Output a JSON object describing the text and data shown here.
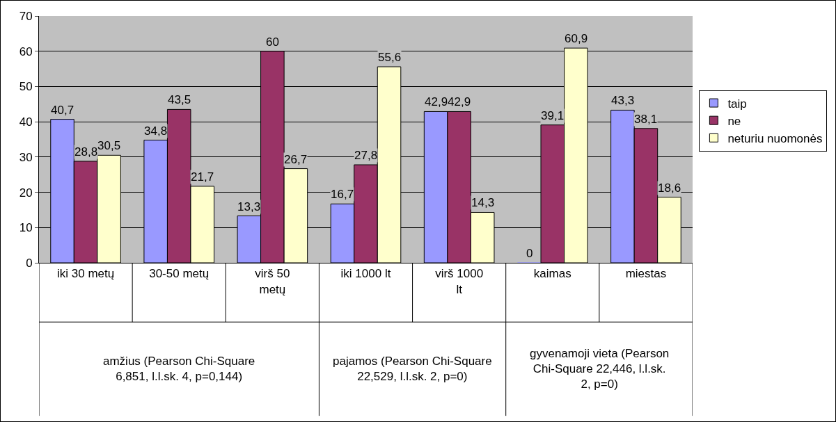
{
  "chart_data": {
    "type": "bar",
    "categories": [
      "iki 30 metų",
      "30-50 metų",
      "virš 50 metų",
      "iki 1000 lt",
      "virš 1000 lt",
      "kaimas",
      "miestas"
    ],
    "series": [
      {
        "name": "taip",
        "color": "#9999ff",
        "values": [
          40.7,
          34.8,
          13.3,
          16.7,
          42.9,
          0,
          43.3
        ],
        "value_labels": [
          "40,7",
          "34,8",
          "13,3",
          "16,7",
          "42,9",
          "0",
          "43,3"
        ]
      },
      {
        "name": "ne",
        "color": "#993366",
        "values": [
          28.8,
          43.5,
          60,
          27.8,
          42.9,
          39.1,
          38.1
        ],
        "value_labels": [
          "28,8",
          "43,5",
          "60",
          "27,8",
          "42,9",
          "39,1",
          "38,1"
        ]
      },
      {
        "name": "neturiu nuomonės",
        "color": "#ffffcc",
        "values": [
          30.5,
          21.7,
          26.7,
          55.6,
          14.3,
          60.9,
          18.6
        ],
        "value_labels": [
          "30,5",
          "21,7",
          "26,7",
          "55,6",
          "14,3",
          "60,9",
          "18,6"
        ]
      }
    ],
    "ylim": [
      0,
      70
    ],
    "yticks": [
      0,
      10,
      20,
      30,
      40,
      50,
      60,
      70
    ],
    "grid": "y",
    "legend": "right",
    "annotations": [
      "amžius (Pearson Chi-Square 6,851, l.l.sk. 4, p=0,144)",
      "pajamos (Pearson Chi-Square 22,529, l.l.sk. 2, p=0)",
      "gyvenamoji vieta (Pearson Chi-Square 22,446, l.l.sk. 2, p=0)"
    ]
  }
}
